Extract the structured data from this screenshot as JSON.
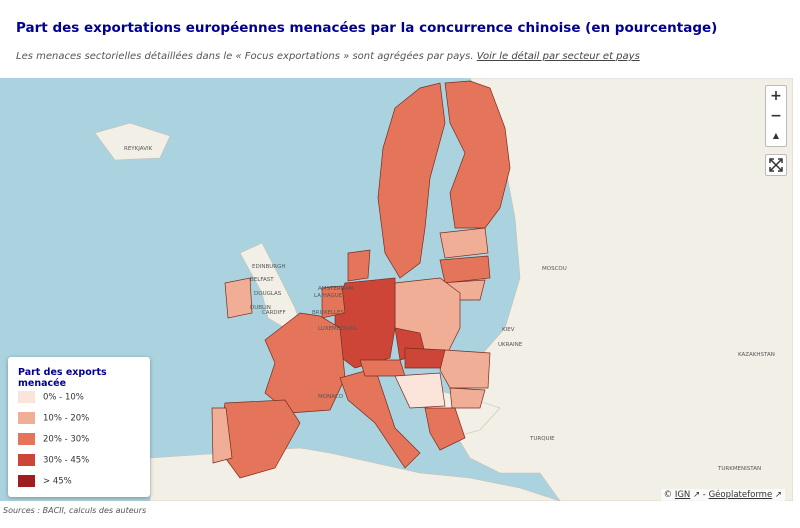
{
  "header": {
    "title": "Part des exportations européennes menacées par la concurrence chinoise (en pourcentage)",
    "subtitle": "Les menaces sectorielles détaillées dans le « Focus exportations » sont agrégées par pays.",
    "link": "Voir le détail par secteur et pays"
  },
  "legend": {
    "title": "Part des exports menacée",
    "items": [
      {
        "label": "0% - 10%",
        "color": "#fbe4d9"
      },
      {
        "label": "10% - 20%",
        "color": "#efae95"
      },
      {
        "label": "20% - 30%",
        "color": "#e4745a"
      },
      {
        "label": "30% - 45%",
        "color": "#cd4536"
      },
      {
        "label": "> 45%",
        "color": "#a01d1d"
      }
    ]
  },
  "map": {
    "labels": [
      "REYKJAVIK",
      "EDINBURGH",
      "BELFAST",
      "DOUGLAS",
      "DUBLIN",
      "CARDIFF",
      "AMSTERDAM",
      "LA HAGUE",
      "BRUXELLES",
      "LUXEMBOURG",
      "MONACO",
      "MOSCOU",
      "KIEV",
      "UKRAINE",
      "KAZAKHSTAN",
      "TURQUIE",
      "TURKMENISTAN"
    ],
    "attribution": {
      "copyright": "©",
      "ign": "IGN",
      "separator": "-",
      "geoplateforme": "Géoplateforme"
    }
  },
  "controls": {
    "zoom_in": "+",
    "zoom_out": "−",
    "north": "▲"
  },
  "footer": {
    "source": "Sources : BACII, calculs des auteurs"
  }
}
